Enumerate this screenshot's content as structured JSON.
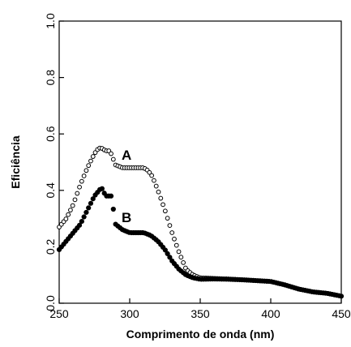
{
  "chart_data": {
    "type": "scatter",
    "title": "",
    "xlabel": "Comprimento de onda (nm)",
    "ylabel": "Eficiência",
    "xlim": [
      250,
      450
    ],
    "ylim": [
      0.0,
      1.0
    ],
    "x_ticks": [
      "250",
      "300",
      "350",
      "400",
      "450"
    ],
    "y_ticks": [
      "0.0",
      "0.2",
      "0.4",
      "0.6",
      "0.8",
      "1.0"
    ],
    "grid": false,
    "legend": "none",
    "series": [
      {
        "name": "A",
        "marker": "open-circle",
        "color": "#000000",
        "x": [
          250,
          255,
          260,
          265,
          270,
          275,
          278,
          280,
          283,
          286,
          290,
          295,
          300,
          305,
          310,
          313,
          316,
          320,
          325,
          330,
          335,
          340,
          345,
          350,
          360,
          370,
          380,
          390,
          400,
          410,
          420,
          430,
          440,
          450
        ],
        "y": [
          0.27,
          0.3,
          0.35,
          0.42,
          0.48,
          0.53,
          0.55,
          0.55,
          0.54,
          0.54,
          0.49,
          0.48,
          0.48,
          0.48,
          0.48,
          0.47,
          0.45,
          0.4,
          0.33,
          0.25,
          0.18,
          0.12,
          0.1,
          0.09,
          0.088,
          0.086,
          0.083,
          0.08,
          0.077,
          0.065,
          0.05,
          0.04,
          0.035,
          0.025
        ]
      },
      {
        "name": "B",
        "marker": "filled-circle",
        "color": "#000000",
        "x": [
          250,
          255,
          260,
          265,
          270,
          275,
          280,
          283,
          287,
          290,
          295,
          300,
          305,
          310,
          315,
          320,
          325,
          330,
          335,
          340,
          345,
          350,
          360,
          370,
          380,
          390,
          400,
          410,
          420,
          430,
          440,
          450
        ],
        "y": [
          0.19,
          0.22,
          0.25,
          0.28,
          0.33,
          0.38,
          0.41,
          0.38,
          0.38,
          0.28,
          0.26,
          0.25,
          0.25,
          0.25,
          0.24,
          0.22,
          0.19,
          0.15,
          0.12,
          0.1,
          0.09,
          0.085,
          0.086,
          0.085,
          0.083,
          0.08,
          0.077,
          0.065,
          0.05,
          0.04,
          0.035,
          0.025
        ]
      }
    ],
    "annotations": [
      "A",
      "B"
    ]
  }
}
